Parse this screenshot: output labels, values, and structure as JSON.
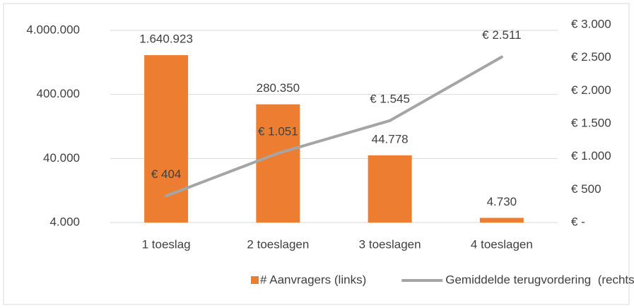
{
  "chart_data": {
    "type": "bar",
    "categories": [
      "1 toeslag",
      "2 toeslagen",
      "3 toeslagen",
      "4 toeslagen"
    ],
    "series": [
      {
        "name": "# Aanvragers (links)",
        "type": "bar",
        "color": "#ed7d31",
        "axis": "y",
        "values": [
          1640923,
          280350,
          44778,
          4730
        ],
        "value_labels": [
          "1.640.923",
          "280.350",
          "44.778",
          "4.730"
        ]
      },
      {
        "name": "Gemiddelde terugvordering  (rechts)",
        "type": "line",
        "color": "#a5a5a5",
        "axis": "y2",
        "values": [
          404,
          1051,
          1545,
          2511
        ],
        "value_labels": [
          "€ 404",
          "€ 1.051",
          "€ 1.545",
          "€ 2.511"
        ]
      }
    ],
    "ylog": true,
    "ylim": [
      4000,
      4900000
    ],
    "yticks": [
      {
        "value": 4000,
        "label": "4.000"
      },
      {
        "value": 40000,
        "label": "40.000"
      },
      {
        "value": 400000,
        "label": "400.000"
      },
      {
        "value": 4000000,
        "label": "4.000.000"
      }
    ],
    "y2lim": [
      0,
      3000
    ],
    "y2ticks": [
      {
        "value": 0,
        "label": "€ -"
      },
      {
        "value": 500,
        "label": "€ 500"
      },
      {
        "value": 1000,
        "label": "€ 1.000"
      },
      {
        "value": 1500,
        "label": "€ 1.500"
      },
      {
        "value": 2000,
        "label": "€ 2.000"
      },
      {
        "value": 2500,
        "label": "€ 2.500"
      },
      {
        "value": 3000,
        "label": "€ 3.000"
      }
    ],
    "grid": true,
    "legend": "bottom"
  }
}
